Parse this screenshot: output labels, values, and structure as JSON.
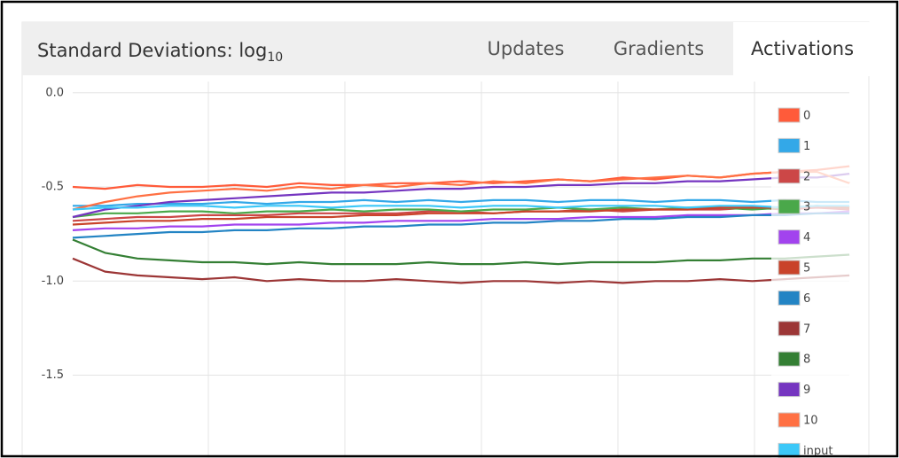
{
  "header": {
    "title": "Standard Deviations: log",
    "title_subscript": "10",
    "tabs": [
      "Updates",
      "Gradients",
      "Activations"
    ],
    "active_tab": 2
  },
  "chart_data": {
    "type": "line",
    "ylim": [
      -1.94,
      0.06
    ],
    "yticks": [
      {
        "value": 0,
        "label": "0.0"
      },
      -0.5,
      {
        "value": -1,
        "label": "-1.0"
      },
      -1.5
    ],
    "grid": true,
    "legend": "right",
    "series": [
      {
        "name": "0",
        "color": "#ff5b3a",
        "values": [
          -0.5,
          -0.51,
          -0.49,
          -0.5,
          -0.5,
          -0.49,
          -0.5,
          -0.48,
          -0.49,
          -0.49,
          -0.48,
          -0.48,
          -0.47,
          -0.48,
          -0.47,
          -0.46,
          -0.47,
          -0.45,
          -0.46,
          -0.44,
          -0.45,
          -0.43,
          -0.42,
          -0.41,
          -0.39
        ]
      },
      {
        "name": "1",
        "color": "#33a8e8",
        "values": [
          -0.6,
          -0.6,
          -0.59,
          -0.59,
          -0.59,
          -0.58,
          -0.59,
          -0.58,
          -0.58,
          -0.57,
          -0.58,
          -0.57,
          -0.58,
          -0.57,
          -0.57,
          -0.58,
          -0.57,
          -0.57,
          -0.58,
          -0.57,
          -0.57,
          -0.58,
          -0.57,
          -0.58,
          -0.58
        ]
      },
      {
        "name": "2",
        "color": "#cc4747",
        "values": [
          -0.68,
          -0.67,
          -0.66,
          -0.66,
          -0.65,
          -0.65,
          -0.65,
          -0.64,
          -0.64,
          -0.64,
          -0.64,
          -0.63,
          -0.63,
          -0.64,
          -0.63,
          -0.63,
          -0.62,
          -0.63,
          -0.62,
          -0.62,
          -0.62,
          -0.61,
          -0.62,
          -0.61,
          -0.62
        ]
      },
      {
        "name": "3",
        "color": "#4aa84a",
        "values": [
          -0.66,
          -0.64,
          -0.64,
          -0.63,
          -0.63,
          -0.64,
          -0.63,
          -0.63,
          -0.62,
          -0.63,
          -0.62,
          -0.62,
          -0.63,
          -0.62,
          -0.62,
          -0.61,
          -0.62,
          -0.61,
          -0.62,
          -0.61,
          -0.61,
          -0.62,
          -0.61,
          -0.6,
          -0.61
        ]
      },
      {
        "name": "4",
        "color": "#a243ee",
        "values": [
          -0.73,
          -0.72,
          -0.72,
          -0.71,
          -0.71,
          -0.7,
          -0.7,
          -0.7,
          -0.69,
          -0.69,
          -0.68,
          -0.68,
          -0.68,
          -0.67,
          -0.67,
          -0.67,
          -0.66,
          -0.66,
          -0.66,
          -0.65,
          -0.65,
          -0.65,
          -0.64,
          -0.64,
          -0.63
        ]
      },
      {
        "name": "5",
        "color": "#c9432a",
        "values": [
          -0.7,
          -0.69,
          -0.68,
          -0.68,
          -0.67,
          -0.67,
          -0.66,
          -0.66,
          -0.66,
          -0.65,
          -0.65,
          -0.64,
          -0.64,
          -0.64,
          -0.63,
          -0.63,
          -0.63,
          -0.62,
          -0.62,
          -0.62,
          -0.61,
          -0.61,
          -0.61,
          -0.6,
          -0.61
        ]
      },
      {
        "name": "6",
        "color": "#2384c4",
        "values": [
          -0.77,
          -0.76,
          -0.75,
          -0.74,
          -0.74,
          -0.73,
          -0.73,
          -0.72,
          -0.72,
          -0.71,
          -0.71,
          -0.7,
          -0.7,
          -0.69,
          -0.69,
          -0.68,
          -0.68,
          -0.67,
          -0.67,
          -0.66,
          -0.66,
          -0.65,
          -0.65,
          -0.64,
          -0.64
        ]
      },
      {
        "name": "7",
        "color": "#9c3636",
        "values": [
          -0.88,
          -0.95,
          -0.97,
          -0.98,
          -0.99,
          -0.98,
          -1.0,
          -0.99,
          -1.0,
          -1.0,
          -0.99,
          -1.0,
          -1.01,
          -1.0,
          -1.0,
          -1.01,
          -1.0,
          -1.01,
          -1.0,
          -1.0,
          -0.99,
          -1.0,
          -0.99,
          -0.98,
          -0.97
        ]
      },
      {
        "name": "8",
        "color": "#347f34",
        "values": [
          -0.78,
          -0.85,
          -0.88,
          -0.89,
          -0.9,
          -0.9,
          -0.91,
          -0.9,
          -0.91,
          -0.91,
          -0.91,
          -0.9,
          -0.91,
          -0.91,
          -0.9,
          -0.91,
          -0.9,
          -0.9,
          -0.9,
          -0.89,
          -0.89,
          -0.88,
          -0.88,
          -0.87,
          -0.86
        ]
      },
      {
        "name": "9",
        "color": "#7535c0",
        "values": [
          -0.66,
          -0.62,
          -0.6,
          -0.58,
          -0.57,
          -0.56,
          -0.55,
          -0.54,
          -0.53,
          -0.53,
          -0.52,
          -0.51,
          -0.51,
          -0.5,
          -0.5,
          -0.49,
          -0.49,
          -0.48,
          -0.48,
          -0.47,
          -0.47,
          -0.46,
          -0.45,
          -0.45,
          -0.43
        ]
      },
      {
        "name": "10",
        "color": "#ff7043",
        "values": [
          -0.62,
          -0.58,
          -0.55,
          -0.53,
          -0.52,
          -0.51,
          -0.52,
          -0.5,
          -0.51,
          -0.49,
          -0.5,
          -0.48,
          -0.49,
          -0.47,
          -0.48,
          -0.46,
          -0.47,
          -0.46,
          -0.45,
          -0.44,
          -0.45,
          -0.43,
          -0.42,
          -0.42,
          -0.48
        ]
      },
      {
        "name": "input",
        "color": "#3cc8f8",
        "values": [
          -0.62,
          -0.61,
          -0.61,
          -0.6,
          -0.6,
          -0.61,
          -0.6,
          -0.6,
          -0.61,
          -0.6,
          -0.6,
          -0.6,
          -0.61,
          -0.6,
          -0.6,
          -0.61,
          -0.6,
          -0.6,
          -0.6,
          -0.61,
          -0.6,
          -0.6,
          -0.61,
          -0.6,
          -0.6
        ]
      }
    ]
  }
}
